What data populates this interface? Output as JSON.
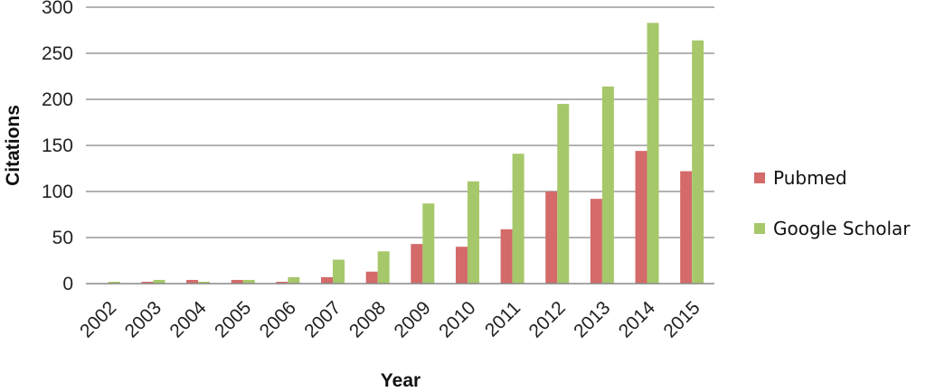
{
  "chart_data": {
    "type": "bar",
    "categories": [
      "2002",
      "2003",
      "2004",
      "2005",
      "2006",
      "2007",
      "2008",
      "2009",
      "2010",
      "2011",
      "2012",
      "2013",
      "2014",
      "2015"
    ],
    "series": [
      {
        "name": "Pubmed",
        "color": "#d46a6a",
        "values": [
          0,
          2,
          4,
          4,
          2,
          7,
          13,
          43,
          40,
          59,
          100,
          92,
          144,
          122
        ]
      },
      {
        "name": "Google Scholar",
        "color": "#a6c86a",
        "values": [
          2,
          4,
          2,
          4,
          7,
          26,
          35,
          87,
          111,
          141,
          195,
          214,
          283,
          264
        ]
      }
    ],
    "xlabel": "Year",
    "ylabel": "Citations",
    "ylim": [
      0,
      300
    ],
    "yticks": [
      0,
      50,
      100,
      150,
      200,
      250,
      300
    ],
    "grid": true,
    "legend": "right"
  }
}
